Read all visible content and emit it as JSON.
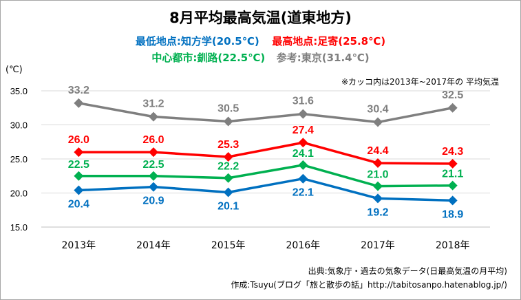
{
  "title": "8月平均最高気温(道東地方)",
  "subtitle": {
    "min_label": "最低地点:知方学(20.5℃)",
    "max_label": "最高地点:足寄(25.8℃)",
    "city_label": "中心都市:釧路(22.5℃)",
    "ref_label": "参考:東京(31.4℃)"
  },
  "unit_label": "(℃)",
  "note": "※カッコ内は2013年~2017年の 平均気温",
  "source_line1": "出典:気象庁・過去の気象データ(日最高気温の月平均)",
  "source_line2": "作成:Tsuyu(ブログ「旅と散歩の話」http://tabitosanpo.hatenablog.jp/)",
  "colors": {
    "tokyo": "#7f7f7f",
    "ashoro": "#ff0000",
    "kushiro": "#00b050",
    "chihogaku": "#0070c0",
    "grid": "#d9d9d9",
    "text": "#000000"
  },
  "chart_data": {
    "type": "line",
    "categories": [
      "2013年",
      "2014年",
      "2015年",
      "2016年",
      "2017年",
      "2018年"
    ],
    "ylim": [
      15.0,
      35.0
    ],
    "yticks": [
      "15.0",
      "20.0",
      "25.0",
      "30.0",
      "35.0"
    ],
    "grid": true,
    "marker": "diamond",
    "series": [
      {
        "key": "tokyo",
        "values": [
          33.2,
          31.2,
          30.5,
          31.6,
          30.4,
          32.5
        ],
        "labels": [
          "33.2",
          "31.2",
          "30.5",
          "31.6",
          "30.4",
          "32.5"
        ]
      },
      {
        "key": "ashoro",
        "values": [
          26.0,
          26.0,
          25.3,
          27.4,
          24.4,
          24.3
        ],
        "labels": [
          "26.0",
          "26.0",
          "25.3",
          "27.4",
          "24.4",
          "24.3"
        ]
      },
      {
        "key": "kushiro",
        "values": [
          22.5,
          22.5,
          22.2,
          24.1,
          21.0,
          21.1
        ],
        "labels": [
          "22.5",
          "22.5",
          "22.2",
          "24.1",
          "21.0",
          "21.1"
        ]
      },
      {
        "key": "chihogaku",
        "values": [
          20.4,
          20.9,
          20.1,
          22.1,
          19.2,
          18.9
        ],
        "labels": [
          "20.4",
          "20.9",
          "20.1",
          "22.1",
          "19.2",
          "18.9"
        ]
      }
    ]
  }
}
